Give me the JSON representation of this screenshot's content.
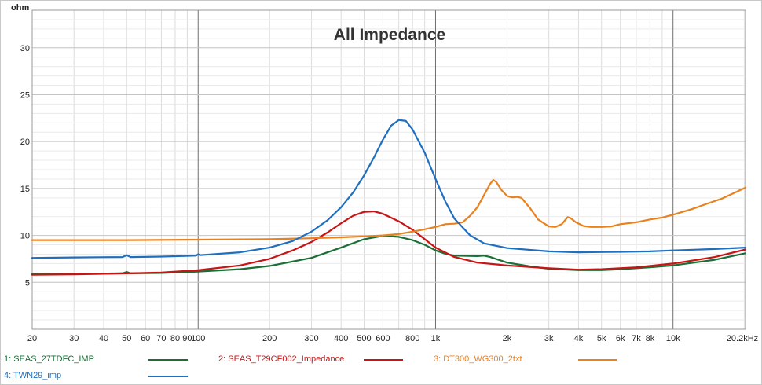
{
  "chart_data": {
    "type": "line",
    "title": "All Impedance",
    "ylabel": "ohm",
    "xlabel": "",
    "xscale": "log",
    "xlim": [
      20,
      20200
    ],
    "ylim": [
      0,
      34
    ],
    "grid": true,
    "y_ticks": [
      {
        "value": 5,
        "label": "5"
      },
      {
        "value": 10,
        "label": "10"
      },
      {
        "value": 15,
        "label": "15"
      },
      {
        "value": 20,
        "label": "20"
      },
      {
        "value": 25,
        "label": "25"
      },
      {
        "value": 30,
        "label": "30"
      }
    ],
    "x_ticks": [
      {
        "value": 20,
        "label": "20"
      },
      {
        "value": 30,
        "label": "30"
      },
      {
        "value": 40,
        "label": "40"
      },
      {
        "value": 50,
        "label": "50"
      },
      {
        "value": 60,
        "label": "60"
      },
      {
        "value": 70,
        "label": "70"
      },
      {
        "value": 80,
        "label": "80"
      },
      {
        "value": 90,
        "label": "90"
      },
      {
        "value": 100,
        "label": "100"
      },
      {
        "value": 200,
        "label": "200"
      },
      {
        "value": 300,
        "label": "300"
      },
      {
        "value": 400,
        "label": "400"
      },
      {
        "value": 500,
        "label": "500"
      },
      {
        "value": 600,
        "label": "600"
      },
      {
        "value": 800,
        "label": "800"
      },
      {
        "value": 1000,
        "label": "1k"
      },
      {
        "value": 2000,
        "label": "2k"
      },
      {
        "value": 3000,
        "label": "3k"
      },
      {
        "value": 4000,
        "label": "4k"
      },
      {
        "value": 5000,
        "label": "5k"
      },
      {
        "value": 6000,
        "label": "6k"
      },
      {
        "value": 7000,
        "label": "7k"
      },
      {
        "value": 8000,
        "label": "8k"
      },
      {
        "value": 10000,
        "label": "10k"
      },
      {
        "value": 20200,
        "label": "20.2kHz"
      }
    ],
    "series": [
      {
        "name": "1: SEAS_27TDFC_IMP",
        "color": "#1a6e36",
        "points": [
          [
            20,
            5.9
          ],
          [
            30,
            5.9
          ],
          [
            48,
            5.95
          ],
          [
            50,
            6.1
          ],
          [
            52,
            5.95
          ],
          [
            70,
            6.0
          ],
          [
            100,
            6.15
          ],
          [
            150,
            6.4
          ],
          [
            200,
            6.75
          ],
          [
            300,
            7.6
          ],
          [
            400,
            8.7
          ],
          [
            500,
            9.6
          ],
          [
            600,
            9.95
          ],
          [
            700,
            9.85
          ],
          [
            800,
            9.5
          ],
          [
            900,
            9.0
          ],
          [
            1000,
            8.4
          ],
          [
            1100,
            8.05
          ],
          [
            1200,
            7.85
          ],
          [
            1500,
            7.8
          ],
          [
            1600,
            7.85
          ],
          [
            1700,
            7.7
          ],
          [
            2000,
            7.1
          ],
          [
            2500,
            6.7
          ],
          [
            3000,
            6.45
          ],
          [
            4000,
            6.3
          ],
          [
            5000,
            6.3
          ],
          [
            6000,
            6.4
          ],
          [
            8000,
            6.6
          ],
          [
            10000,
            6.8
          ],
          [
            15000,
            7.4
          ],
          [
            20200,
            8.1
          ]
        ]
      },
      {
        "name": "2: SEAS_T29CF002_Impedance",
        "color": "#c81414",
        "points": [
          [
            20,
            5.8
          ],
          [
            30,
            5.85
          ],
          [
            50,
            5.95
          ],
          [
            70,
            6.05
          ],
          [
            100,
            6.3
          ],
          [
            150,
            6.8
          ],
          [
            200,
            7.5
          ],
          [
            250,
            8.4
          ],
          [
            300,
            9.3
          ],
          [
            350,
            10.3
          ],
          [
            400,
            11.3
          ],
          [
            450,
            12.1
          ],
          [
            500,
            12.5
          ],
          [
            550,
            12.55
          ],
          [
            600,
            12.3
          ],
          [
            700,
            11.5
          ],
          [
            800,
            10.6
          ],
          [
            900,
            9.6
          ],
          [
            1000,
            8.7
          ],
          [
            1200,
            7.7
          ],
          [
            1500,
            7.1
          ],
          [
            2000,
            6.8
          ],
          [
            3000,
            6.5
          ],
          [
            4000,
            6.35
          ],
          [
            5000,
            6.4
          ],
          [
            7000,
            6.6
          ],
          [
            10000,
            7.0
          ],
          [
            15000,
            7.7
          ],
          [
            20200,
            8.5
          ]
        ]
      },
      {
        "name": "3: DT300_WG300_2txt",
        "color": "#e8821e",
        "points": [
          [
            20,
            9.5
          ],
          [
            50,
            9.5
          ],
          [
            100,
            9.55
          ],
          [
            200,
            9.6
          ],
          [
            300,
            9.7
          ],
          [
            400,
            9.8
          ],
          [
            500,
            9.9
          ],
          [
            600,
            10.0
          ],
          [
            700,
            10.15
          ],
          [
            800,
            10.4
          ],
          [
            900,
            10.65
          ],
          [
            1000,
            10.9
          ],
          [
            1100,
            11.2
          ],
          [
            1200,
            11.25
          ],
          [
            1300,
            11.4
          ],
          [
            1400,
            12.1
          ],
          [
            1500,
            13.0
          ],
          [
            1600,
            14.3
          ],
          [
            1700,
            15.5
          ],
          [
            1750,
            15.9
          ],
          [
            1800,
            15.7
          ],
          [
            1900,
            14.8
          ],
          [
            2000,
            14.2
          ],
          [
            2100,
            14.05
          ],
          [
            2200,
            14.1
          ],
          [
            2300,
            14.0
          ],
          [
            2500,
            12.9
          ],
          [
            2700,
            11.7
          ],
          [
            3000,
            10.95
          ],
          [
            3200,
            10.9
          ],
          [
            3400,
            11.2
          ],
          [
            3600,
            11.95
          ],
          [
            3700,
            11.85
          ],
          [
            3900,
            11.4
          ],
          [
            4200,
            11.0
          ],
          [
            4500,
            10.9
          ],
          [
            5000,
            10.9
          ],
          [
            5500,
            10.95
          ],
          [
            6000,
            11.2
          ],
          [
            7000,
            11.4
          ],
          [
            8000,
            11.7
          ],
          [
            9000,
            11.9
          ],
          [
            10000,
            12.2
          ],
          [
            12000,
            12.8
          ],
          [
            14000,
            13.4
          ],
          [
            16000,
            13.9
          ],
          [
            18000,
            14.5
          ],
          [
            20200,
            15.1
          ]
        ]
      },
      {
        "name": "4: TWN29_imp",
        "color": "#1f6fbf",
        "points": [
          [
            20,
            7.6
          ],
          [
            30,
            7.65
          ],
          [
            48,
            7.7
          ],
          [
            50,
            7.9
          ],
          [
            52,
            7.7
          ],
          [
            70,
            7.75
          ],
          [
            98,
            7.85
          ],
          [
            100,
            8.0
          ],
          [
            102,
            7.9
          ],
          [
            150,
            8.2
          ],
          [
            200,
            8.7
          ],
          [
            250,
            9.4
          ],
          [
            300,
            10.4
          ],
          [
            350,
            11.6
          ],
          [
            400,
            13.0
          ],
          [
            450,
            14.6
          ],
          [
            500,
            16.4
          ],
          [
            550,
            18.3
          ],
          [
            600,
            20.2
          ],
          [
            650,
            21.7
          ],
          [
            700,
            22.3
          ],
          [
            750,
            22.2
          ],
          [
            800,
            21.3
          ],
          [
            900,
            18.8
          ],
          [
            1000,
            16.0
          ],
          [
            1100,
            13.6
          ],
          [
            1200,
            11.8
          ],
          [
            1400,
            10.0
          ],
          [
            1600,
            9.15
          ],
          [
            2000,
            8.65
          ],
          [
            3000,
            8.3
          ],
          [
            4000,
            8.2
          ],
          [
            6000,
            8.25
          ],
          [
            8000,
            8.3
          ],
          [
            10000,
            8.4
          ],
          [
            15000,
            8.55
          ],
          [
            20200,
            8.7
          ]
        ]
      }
    ]
  }
}
